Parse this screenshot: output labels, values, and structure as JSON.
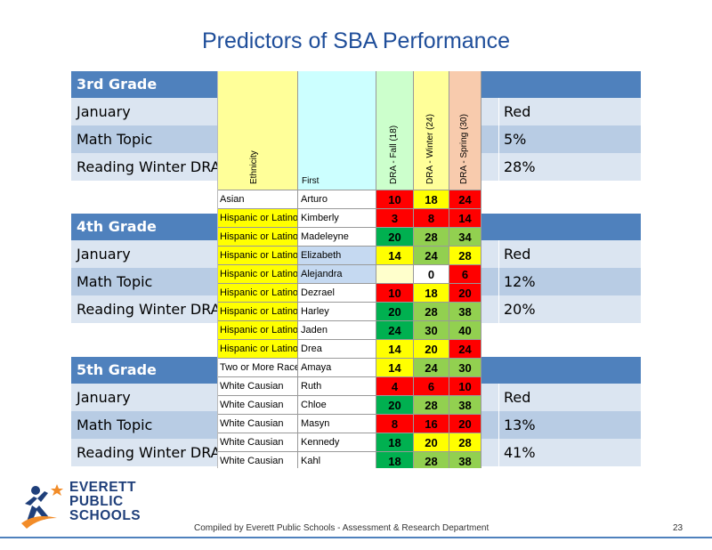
{
  "title": "Predictors of SBA Performance",
  "blocks": [
    {
      "header": "3rd Grade",
      "rows": [
        {
          "label": "January",
          "value": "Red"
        },
        {
          "label": "Math Topic",
          "value": "5%"
        },
        {
          "label": "Reading Winter DRA",
          "value": "28%"
        }
      ]
    },
    {
      "header": "4th Grade",
      "rows": [
        {
          "label": "January",
          "value": "Red"
        },
        {
          "label": "Math Topic",
          "value": "12%"
        },
        {
          "label": "Reading Winter DRA",
          "value": "20%"
        }
      ]
    },
    {
      "header": "5th Grade",
      "rows": [
        {
          "label": "January",
          "value": "Red"
        },
        {
          "label": "Math Topic",
          "value": "13%"
        },
        {
          "label": "Reading Winter DRA",
          "value": "41%"
        }
      ]
    }
  ],
  "sheet": {
    "headers": {
      "ethnicity": "Ethnicity",
      "first": "First",
      "fall": "DRA - Fall (18)",
      "winter": "DRA - Winter (24)",
      "spring": "DRA - Spring (30)"
    },
    "header_colors": {
      "ethnicity": "#ffff99",
      "first": "#ccffff",
      "fall": "#ccffcc",
      "winter": "#ffff99",
      "spring": "#f8cbad"
    },
    "rows": [
      {
        "ethnicity": "Asian",
        "first": "Arturo",
        "fall": "10",
        "winter": "18",
        "spring": "24",
        "eth_bg": "#ffffff",
        "name_bg": "#ffffff",
        "c1": "#ff0000",
        "c2": "#ffff00",
        "c3": "#ff0000"
      },
      {
        "ethnicity": "Hispanic or Latino",
        "first": "Kimberly",
        "fall": "3",
        "winter": "8",
        "spring": "14",
        "eth_bg": "#ffff00",
        "name_bg": "#ffffff",
        "c1": "#ff0000",
        "c2": "#ff0000",
        "c3": "#ff0000"
      },
      {
        "ethnicity": "Hispanic or Latino",
        "first": "Madeleyne",
        "fall": "20",
        "winter": "28",
        "spring": "34",
        "eth_bg": "#ffff00",
        "name_bg": "#ffffff",
        "c1": "#00b050",
        "c2": "#92d050",
        "c3": "#92d050"
      },
      {
        "ethnicity": "Hispanic or Latino",
        "first": "Elizabeth",
        "fall": "14",
        "winter": "24",
        "spring": "28",
        "eth_bg": "#ffff00",
        "name_bg": "#c5d9f1",
        "c1": "#ffff00",
        "c2": "#92d050",
        "c3": "#ffff00"
      },
      {
        "ethnicity": "Hispanic or Latino",
        "first": "Alejandra",
        "fall": "",
        "winter": "0",
        "spring": "6",
        "eth_bg": "#ffff00",
        "name_bg": "#c5d9f1",
        "c1": "#ffffcc",
        "c2": "#ffffff",
        "c3": "#ff0000"
      },
      {
        "ethnicity": "Hispanic or Latino",
        "first": "Dezrael",
        "fall": "10",
        "winter": "18",
        "spring": "20",
        "eth_bg": "#ffff00",
        "name_bg": "#ffffff",
        "c1": "#ff0000",
        "c2": "#ffff00",
        "c3": "#ff0000"
      },
      {
        "ethnicity": "Hispanic or Latino",
        "first": "Harley",
        "fall": "20",
        "winter": "28",
        "spring": "38",
        "eth_bg": "#ffff00",
        "name_bg": "#ffffff",
        "c1": "#00b050",
        "c2": "#92d050",
        "c3": "#92d050"
      },
      {
        "ethnicity": "Hispanic or Latino",
        "first": "Jaden",
        "fall": "24",
        "winter": "30",
        "spring": "40",
        "eth_bg": "#ffff00",
        "name_bg": "#ffffff",
        "c1": "#00b050",
        "c2": "#92d050",
        "c3": "#92d050"
      },
      {
        "ethnicity": "Hispanic or Latino",
        "first": "Drea",
        "fall": "14",
        "winter": "20",
        "spring": "24",
        "eth_bg": "#ffff00",
        "name_bg": "#ffffff",
        "c1": "#ffff00",
        "c2": "#ffff00",
        "c3": "#ff0000"
      },
      {
        "ethnicity": "Two or More Races",
        "first": "Amaya",
        "fall": "14",
        "winter": "24",
        "spring": "30",
        "eth_bg": "#ffffff",
        "name_bg": "#ffffff",
        "c1": "#ffff00",
        "c2": "#92d050",
        "c3": "#92d050"
      },
      {
        "ethnicity": "White Causian",
        "first": "Ruth",
        "fall": "4",
        "winter": "6",
        "spring": "10",
        "eth_bg": "#ffffff",
        "name_bg": "#ffffff",
        "c1": "#ff0000",
        "c2": "#ff0000",
        "c3": "#ff0000"
      },
      {
        "ethnicity": "White Causian",
        "first": "Chloe",
        "fall": "20",
        "winter": "28",
        "spring": "38",
        "eth_bg": "#ffffff",
        "name_bg": "#ffffff",
        "c1": "#00b050",
        "c2": "#92d050",
        "c3": "#92d050"
      },
      {
        "ethnicity": "White Causian",
        "first": "Masyn",
        "fall": "8",
        "winter": "16",
        "spring": "20",
        "eth_bg": "#ffffff",
        "name_bg": "#ffffff",
        "c1": "#ff0000",
        "c2": "#ff0000",
        "c3": "#ff0000"
      },
      {
        "ethnicity": "White Causian",
        "first": "Kennedy",
        "fall": "18",
        "winter": "20",
        "spring": "28",
        "eth_bg": "#ffffff",
        "name_bg": "#ffffff",
        "c1": "#00b050",
        "c2": "#ffff00",
        "c3": "#ffff00"
      },
      {
        "ethnicity": "White Causian",
        "first": "Kahl",
        "fall": "18",
        "winter": "28",
        "spring": "38",
        "eth_bg": "#ffffff",
        "name_bg": "#ffffff",
        "c1": "#00b050",
        "c2": "#92d050",
        "c3": "#92d050"
      }
    ]
  },
  "logo": {
    "line1": "EVERETT",
    "line2": "PUBLIC",
    "line3": "SCHOOLS"
  },
  "footer": "Compiled  by Everett Public Schools  - Assessment & Research Department",
  "page_number": "23"
}
